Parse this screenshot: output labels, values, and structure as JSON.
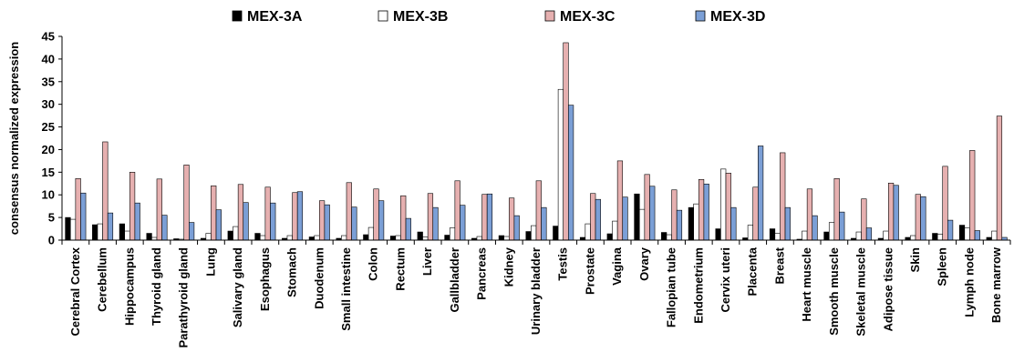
{
  "chart_data": {
    "type": "bar",
    "title": "",
    "xlabel": "",
    "ylabel": "consensus normalized expression",
    "ylim": [
      0,
      45
    ],
    "yticks": [
      0,
      5,
      10,
      15,
      20,
      25,
      30,
      35,
      40,
      45
    ],
    "grid": false,
    "legend_position": "top",
    "categories": [
      "Cerebral Cortex",
      "Cerebellum",
      "Hippocampus",
      "Thyroid gland",
      "Parathyroid gland",
      "Lung",
      "Salivary gland",
      "Esophagus",
      "Stomach",
      "Duodenum",
      "Small intestine",
      "Colon",
      "Rectum",
      "Liver",
      "Gallbladder",
      "Pancreas",
      "Kidney",
      "Urinary bladder",
      "Testis",
      "Prostate",
      "Vagina",
      "Ovary",
      "Fallopian tube",
      "Endometrium",
      "Cervix uteri",
      "Placenta",
      "Breast",
      "Heart muscle",
      "Smooth muscle",
      "Skeletal muscle",
      "Adipose tissue",
      "Skin",
      "Spleen",
      "Lymph node",
      "Bone marrow"
    ],
    "series": [
      {
        "name": "MEX-3A",
        "color": "#000000",
        "values": [
          5.0,
          3.4,
          3.6,
          1.5,
          0.3,
          0.4,
          2.0,
          1.5,
          0.4,
          0.7,
          0.4,
          1.2,
          0.9,
          1.8,
          1.1,
          0.4,
          1.0,
          1.9,
          3.1,
          0.6,
          1.4,
          10.2,
          1.7,
          7.2,
          2.5,
          0.5,
          2.5,
          0.2,
          1.8,
          0.4,
          0.4,
          0.6,
          1.5,
          3.3,
          0.6
        ]
      },
      {
        "name": "MEX-3B",
        "color": "#ffffff",
        "values": [
          4.6,
          3.6,
          2.0,
          0.6,
          0.2,
          1.5,
          3.0,
          1.0,
          1.0,
          1.0,
          1.0,
          2.8,
          1.0,
          0.7,
          2.7,
          0.8,
          0.8,
          3.2,
          33.3,
          3.6,
          4.2,
          6.8,
          1.2,
          8.0,
          15.7,
          3.3,
          1.5,
          2.0,
          3.9,
          1.8,
          2.0,
          1.0,
          1.3,
          2.7,
          2.0
        ]
      },
      {
        "name": "MEX-3C",
        "color": "#e6b0b0",
        "values": [
          13.6,
          21.7,
          15.0,
          13.5,
          16.6,
          12.0,
          12.3,
          11.7,
          10.5,
          8.7,
          12.7,
          11.3,
          9.8,
          10.3,
          13.1,
          10.1,
          9.3,
          13.1,
          43.6,
          10.3,
          17.5,
          14.5,
          11.1,
          13.4,
          14.8,
          11.7,
          19.3,
          11.3,
          13.6,
          9.1,
          12.6,
          10.1,
          16.3,
          19.8,
          27.4
        ]
      },
      {
        "name": "MEX-3D",
        "color": "#7b9fd6",
        "values": [
          10.4,
          6.0,
          8.2,
          5.5,
          3.9,
          6.7,
          8.3,
          8.2,
          10.7,
          7.8,
          7.3,
          8.7,
          4.8,
          7.2,
          7.7,
          10.2,
          5.4,
          7.2,
          29.8,
          9.0,
          9.5,
          11.9,
          6.6,
          12.4,
          7.2,
          20.8,
          7.2,
          5.4,
          6.2,
          2.7,
          12.1,
          9.6,
          4.4,
          2.1,
          0.6
        ]
      }
    ]
  }
}
